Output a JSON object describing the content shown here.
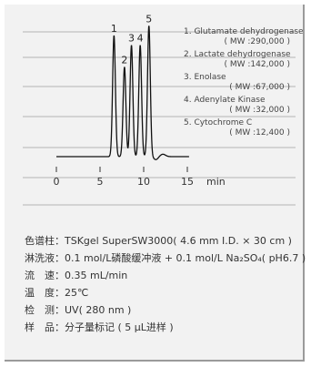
{
  "chart_data": {
    "type": "line",
    "title": "",
    "xlabel": "",
    "x_unit": "min",
    "xlim": [
      -1,
      16
    ],
    "xticks": [
      0,
      5,
      10,
      15
    ],
    "grid": "horizontal",
    "peaks": [
      {
        "number": "1",
        "rt": 6.6,
        "height": 1.0,
        "name": "Glutamate dehydrogenase",
        "mw": "( MW :290,000 )"
      },
      {
        "number": "2",
        "rt": 7.8,
        "height": 0.74,
        "name": "Lactate dehydrogenase",
        "mw": "( MW :142,000 )"
      },
      {
        "number": "3",
        "rt": 8.6,
        "height": 0.92,
        "name": "Enolase",
        "mw": "( MW :67,000 )"
      },
      {
        "number": "4",
        "rt": 9.6,
        "height": 0.92,
        "name": "Adenylate Kinase",
        "mw": "( MW :32,000 )"
      },
      {
        "number": "5",
        "rt": 10.6,
        "height": 1.08,
        "name": "Cytochrome C",
        "mw": "( MW :12,400 )"
      }
    ]
  },
  "conditions": [
    {
      "label": "色谱柱",
      "value": "TSKgel SuperSW3000( 4.6 mm I.D. × 30 cm )"
    },
    {
      "label": "淋洗液",
      "value": "0.1 mol/L磷酸缓冲液 + 0.1 mol/L Na₂SO₄( pH6.7 )"
    },
    {
      "label": "流　速",
      "value": "0.35 mL/min"
    },
    {
      "label": "温　度",
      "value": "25℃"
    },
    {
      "label": "检　测",
      "value": "UV( 280 nm )"
    },
    {
      "label": "样　品",
      "value": "分子量标记 ( 5 μL进样 )"
    }
  ],
  "colors": {
    "trace": "#111111",
    "grid": "#b4b4b4",
    "panel": "#f2f2f2",
    "border": "#9a9a9a"
  }
}
